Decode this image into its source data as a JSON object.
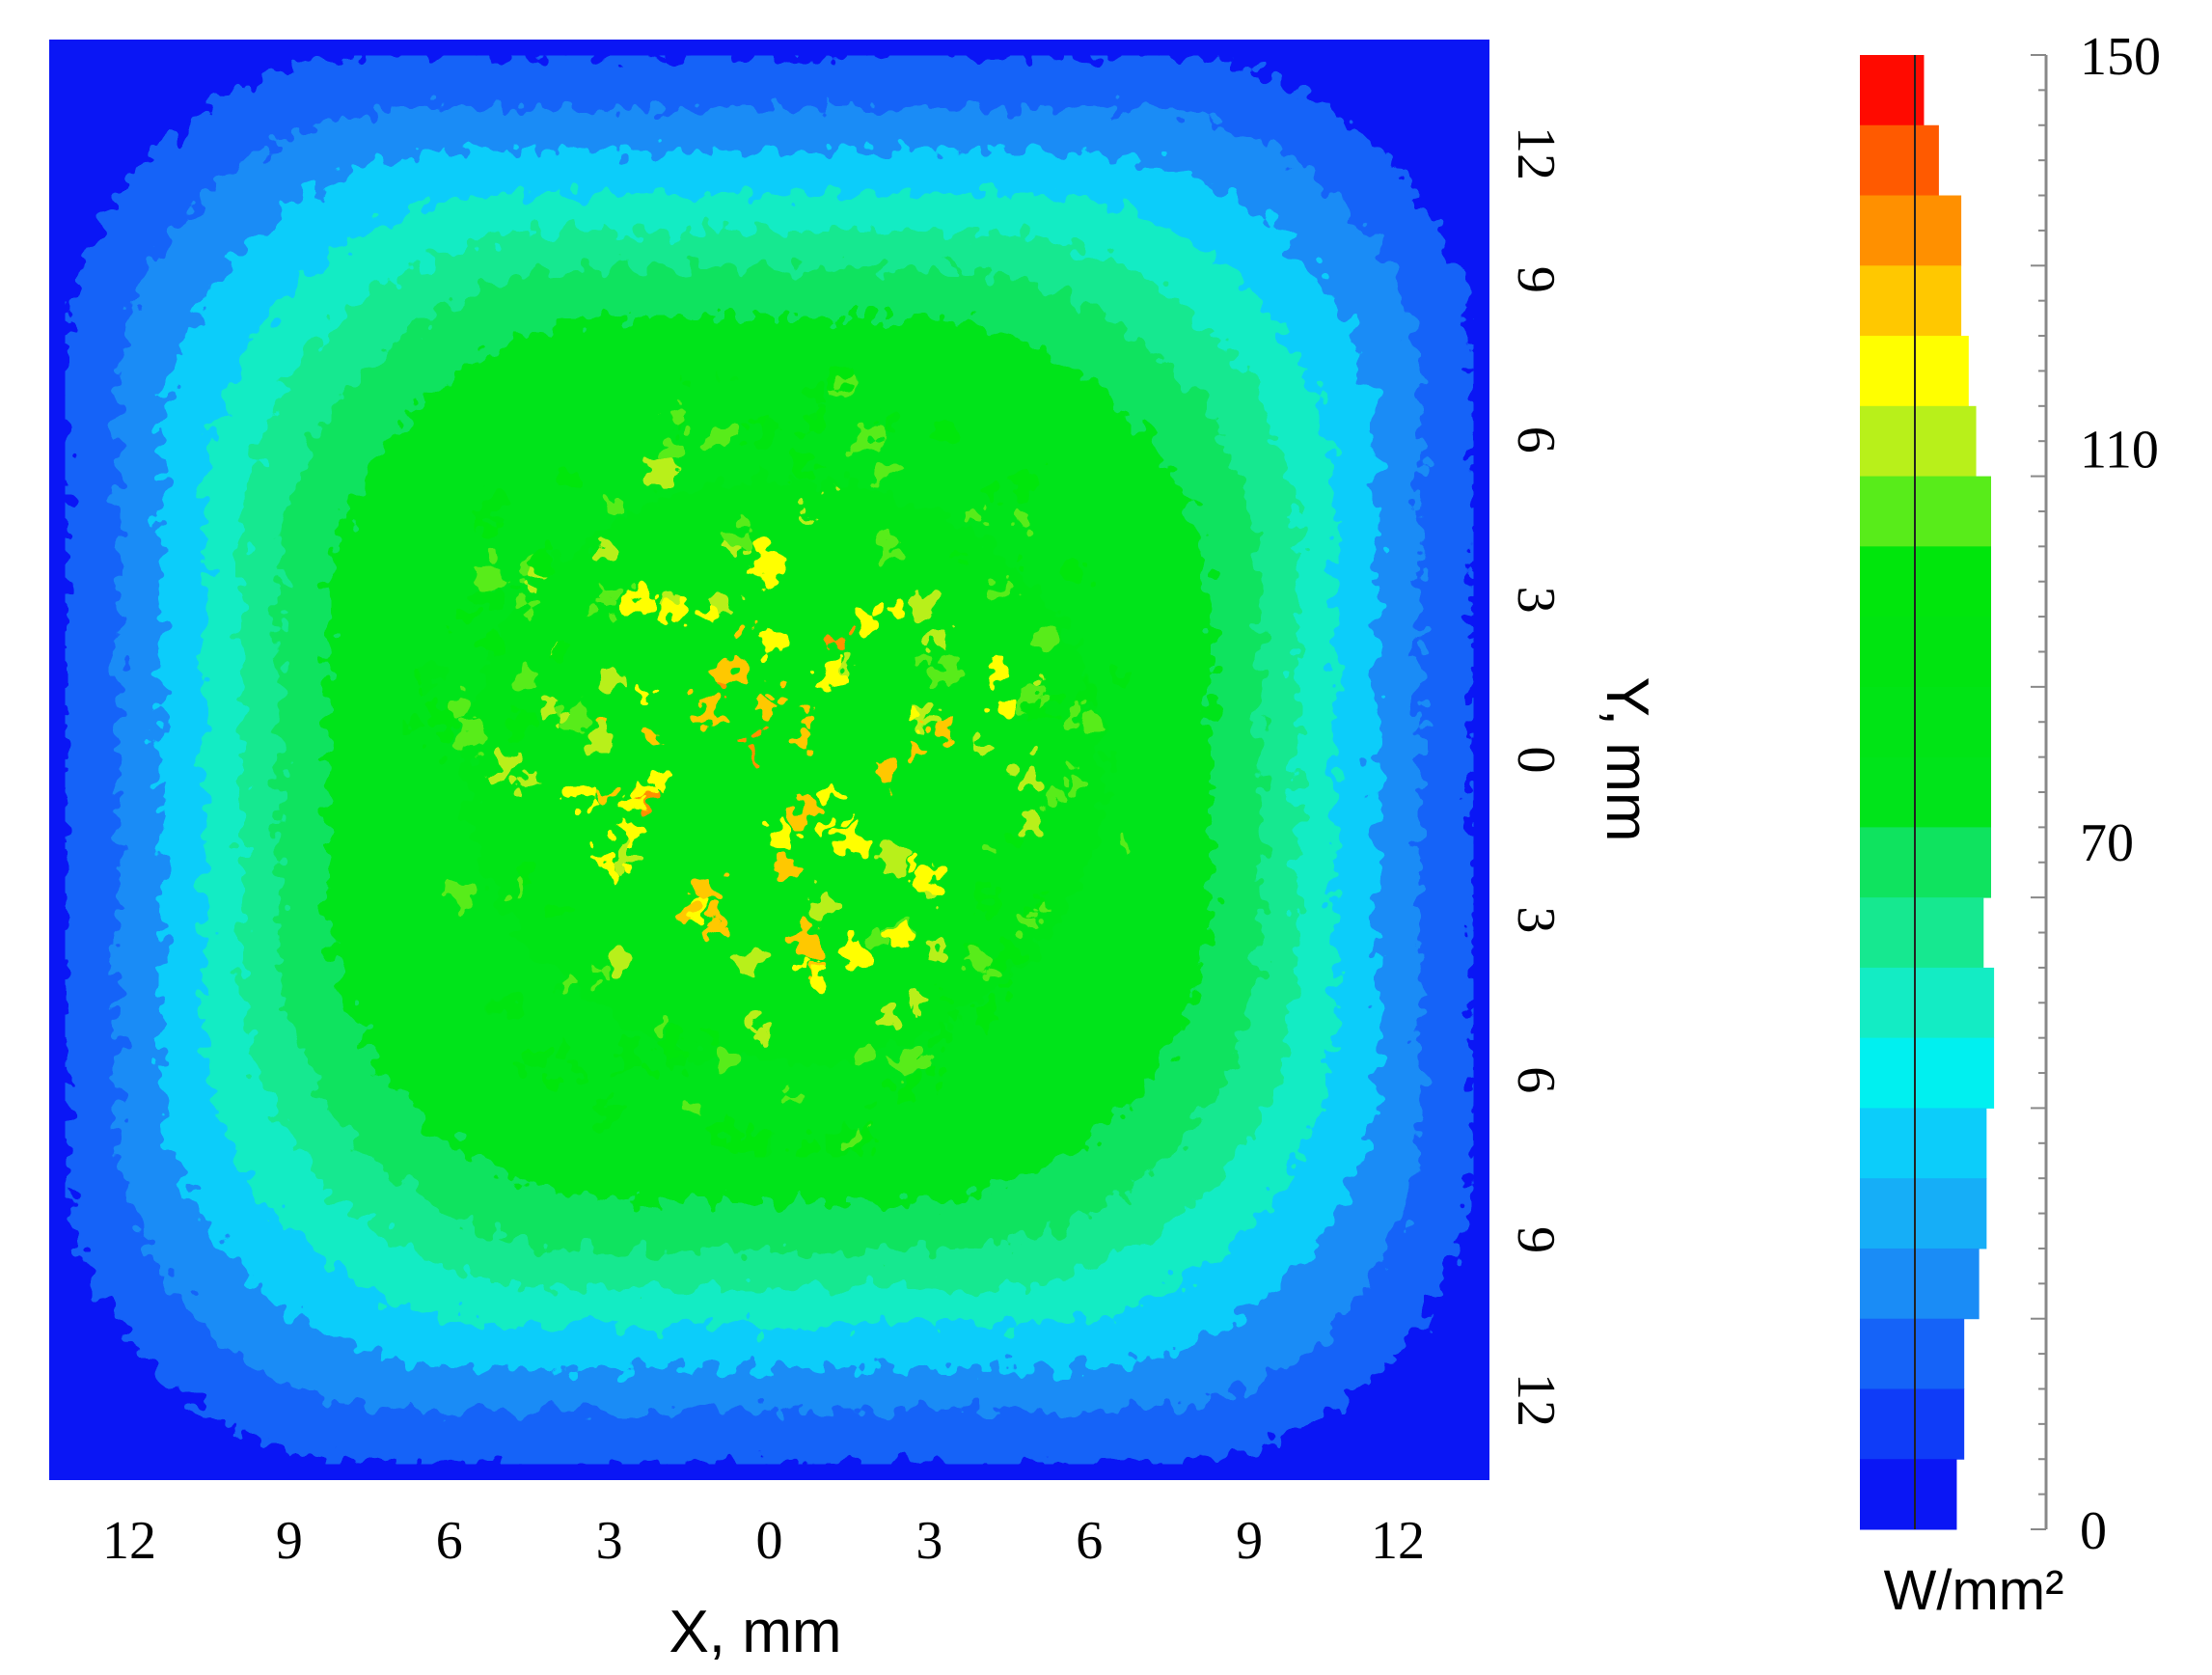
{
  "chart_data": {
    "type": "heatmap",
    "title": "",
    "xlabel": "X, mm",
    "ylabel": "Y, mm",
    "xlim": [
      -13.5,
      13.5
    ],
    "ylim": [
      -13.5,
      13.5
    ],
    "x_ticks": [
      {
        "value": -12,
        "label": "12"
      },
      {
        "value": -9,
        "label": "9"
      },
      {
        "value": -6,
        "label": "6"
      },
      {
        "value": -3,
        "label": "3"
      },
      {
        "value": 0,
        "label": "0"
      },
      {
        "value": 3,
        "label": "3"
      },
      {
        "value": 6,
        "label": "6"
      },
      {
        "value": 9,
        "label": "9"
      },
      {
        "value": 12,
        "label": "12"
      }
    ],
    "y_ticks": [
      {
        "value": 12,
        "label": "12"
      },
      {
        "value": 9,
        "label": "9"
      },
      {
        "value": 6,
        "label": "6"
      },
      {
        "value": 3,
        "label": "3"
      },
      {
        "value": 0,
        "label": "0"
      },
      {
        "value": -3,
        "label": "3"
      },
      {
        "value": -6,
        "label": "6"
      },
      {
        "value": -9,
        "label": "9"
      },
      {
        "value": -12,
        "label": "12"
      }
    ],
    "field": {
      "description_values": "estimated heat-flux distribution (W/mm²): plateau ~75 inside |x|,|y|<~10 mm, peaks up to ~130 near center, falling to ~10 at the edges",
      "center_peak": 125,
      "plateau": 75,
      "edge": 10
    },
    "colorbar": {
      "unit_label": "W/mm²",
      "range": [
        0,
        150
      ],
      "tick_labels": [
        {
          "value": 150,
          "label": "150"
        },
        {
          "value": 110,
          "label": "110"
        },
        {
          "value": 70,
          "label": "70"
        },
        {
          "value": 0,
          "label": "0"
        }
      ],
      "levels": 21,
      "bar_counts": [
        2,
        3,
        3,
        5,
        6,
        6,
        7,
        7,
        10,
        11,
        11,
        11,
        11,
        11,
        11,
        9,
        8,
        7,
        7,
        4,
        2
      ],
      "bar_max_count": 11,
      "colors": [
        "#0a16f5",
        "#0f3cf8",
        "#1563f8",
        "#1a8cf6",
        "#16aef7",
        "#0ccdfa",
        "#00f0f0",
        "#13ecc4",
        "#16e890",
        "#0fe35f",
        "#00e41a",
        "#00e415",
        "#00e410",
        "#00e60c",
        "#58ec1a",
        "#b8f01a",
        "#ffff00",
        "#ffc800",
        "#ff9000",
        "#ff5a00",
        "#ff0a00"
      ]
    },
    "grid": false,
    "legend": "colorbar-right"
  }
}
